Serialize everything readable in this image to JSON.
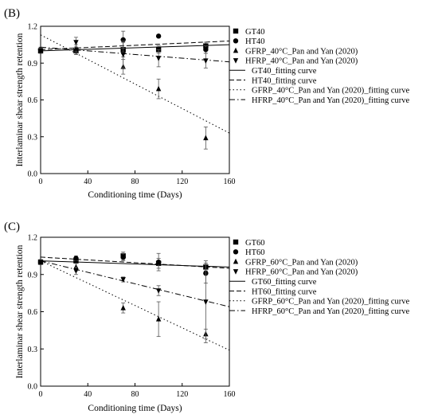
{
  "chart_data": [
    {
      "type": "scatter",
      "panel_label": "(B)",
      "xlabel": "Conditioning time (Days)",
      "ylabel": "Interlaminar shear strength retention",
      "xlim": [
        0,
        160
      ],
      "ylim": [
        0,
        1.2
      ],
      "xticks": [
        "0",
        "40",
        "80",
        "120",
        "160"
      ],
      "yticks": [
        "0.0",
        "0.3",
        "0.6",
        "0.9",
        "1.2"
      ],
      "grid": false,
      "legend_position": "outside-right",
      "series": [
        {
          "name": "GT40",
          "marker": "square",
          "x": [
            0,
            30,
            70,
            100,
            140
          ],
          "y": [
            1.0,
            1.0,
            1.01,
            1.01,
            1.04
          ],
          "err": [
            0.02,
            0.03,
            0.06,
            0.03,
            0.03
          ]
        },
        {
          "name": "HT40",
          "marker": "circle",
          "x": [
            0,
            30,
            70,
            100,
            140
          ],
          "y": [
            1.01,
            1.0,
            1.09,
            1.12,
            1.01
          ],
          "err": [
            0.02,
            0.03,
            0.07,
            0.0,
            0.03
          ]
        },
        {
          "name": "GFRP_40°C_Pan and Yan (2020)",
          "marker": "triangle-up",
          "x": [
            0,
            30,
            70,
            100,
            140
          ],
          "y": [
            1.0,
            1.02,
            0.87,
            0.69,
            0.29
          ],
          "err": [
            0.02,
            0.03,
            0.06,
            0.08,
            0.09
          ]
        },
        {
          "name": "HFRP_40°C_Pan and Yan (2020)",
          "marker": "triangle-down",
          "x": [
            0,
            30,
            70,
            100,
            140
          ],
          "y": [
            1.0,
            1.07,
            0.97,
            0.94,
            0.92
          ],
          "err": [
            0.02,
            0.04,
            0.11,
            0.07,
            0.06
          ]
        }
      ],
      "fits": [
        {
          "name": "GT40_fitting curve",
          "style": "solid",
          "x": [
            0,
            160
          ],
          "y": [
            1.0,
            1.05
          ]
        },
        {
          "name": "HT40_fitting curve",
          "style": "dashed",
          "x": [
            0,
            160
          ],
          "y": [
            1.01,
            1.08
          ]
        },
        {
          "name": "GFRP_40°C_Pan and Yan (2020)_fitting curve",
          "style": "dotted",
          "x": [
            0,
            160
          ],
          "y": [
            1.13,
            0.33
          ]
        },
        {
          "name": "HFRP_40°C_Pan and Yan (2020)_fitting curve",
          "style": "dashdot",
          "x": [
            0,
            160
          ],
          "y": [
            1.03,
            0.91
          ]
        }
      ]
    },
    {
      "type": "scatter",
      "panel_label": "(C)",
      "xlabel": "Conditioning time (Days)",
      "ylabel": "Interlaminar shear strength retention",
      "xlim": [
        0,
        160
      ],
      "ylim": [
        0,
        1.2
      ],
      "xticks": [
        "0",
        "40",
        "80",
        "120",
        "160"
      ],
      "yticks": [
        "0.0",
        "0.3",
        "0.6",
        "0.9",
        "1.2"
      ],
      "grid": false,
      "legend_position": "outside-right",
      "series": [
        {
          "name": "GT60",
          "marker": "square",
          "x": [
            0,
            30,
            70,
            100,
            140
          ],
          "y": [
            1.0,
            1.01,
            1.05,
            0.99,
            0.96
          ],
          "err": [
            0.02,
            0.02,
            0.03,
            0.04,
            0.03
          ]
        },
        {
          "name": "HT60",
          "marker": "circle",
          "x": [
            0,
            30,
            70,
            100,
            140
          ],
          "y": [
            1.0,
            1.03,
            1.04,
            1.0,
            0.91
          ],
          "err": [
            0.02,
            0.02,
            0.03,
            0.07,
            0.08
          ]
        },
        {
          "name": "GFRP_60°C_Pan and Yan (2020)",
          "marker": "triangle-up",
          "x": [
            0,
            30,
            70,
            100,
            140
          ],
          "y": [
            1.0,
            0.96,
            0.63,
            0.54,
            0.42
          ],
          "err": [
            0.02,
            0.03,
            0.04,
            0.14,
            0.04
          ]
        },
        {
          "name": "HFRP_60°C_Pan and Yan (2020)",
          "marker": "triangle-down",
          "x": [
            0,
            30,
            70,
            100,
            140
          ],
          "y": [
            1.0,
            0.93,
            0.86,
            0.77,
            0.68
          ],
          "err": [
            0.02,
            0.03,
            0.02,
            0.04,
            0.33
          ]
        }
      ],
      "fits": [
        {
          "name": "GT60_fitting curve",
          "style": "solid",
          "x": [
            0,
            160
          ],
          "y": [
            1.01,
            0.96
          ]
        },
        {
          "name": "HT60_fitting curve",
          "style": "dashed",
          "x": [
            0,
            160
          ],
          "y": [
            1.04,
            0.95
          ]
        },
        {
          "name": "GFRP_60°C_Pan and Yan (2020)_fitting curve",
          "style": "dotted",
          "x": [
            0,
            160
          ],
          "y": [
            1.01,
            0.29
          ]
        },
        {
          "name": "HFRP_60°C_Pan and Yan (2020)_fitting curve",
          "style": "dashdot",
          "x": [
            0,
            160
          ],
          "y": [
            1.01,
            0.64
          ]
        }
      ]
    }
  ]
}
